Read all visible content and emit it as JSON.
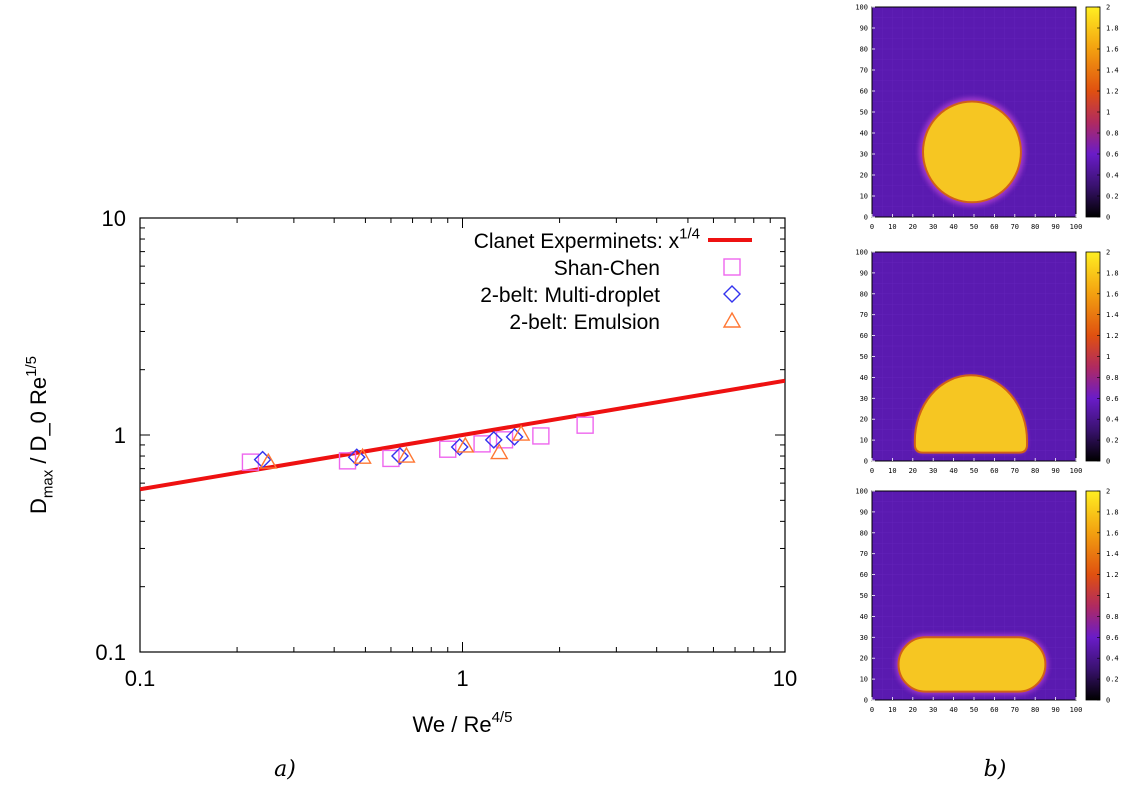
{
  "panel_labels": {
    "a": "a",
    "b": "b"
  },
  "chart_data": [
    {
      "type": "scatter",
      "panel": "a",
      "xlabel": "We / Re^{4/5}",
      "ylabel": "D_{max} / D_0 Re^{1/5}",
      "xscale": "log",
      "yscale": "log",
      "xlim": [
        0.1,
        10
      ],
      "ylim": [
        0.1,
        10
      ],
      "xticks": [
        {
          "value": 0.1,
          "label": "0.1"
        },
        {
          "value": 1,
          "label": "1"
        },
        {
          "value": 10,
          "label": "10"
        }
      ],
      "yticks": [
        {
          "value": 0.1,
          "label": "0.1"
        },
        {
          "value": 1,
          "label": "1"
        },
        {
          "value": 10,
          "label": "10"
        }
      ],
      "grid": false,
      "legend_position": "top-right",
      "line": {
        "name": "Clanet Experminets: x^{1/4}",
        "coef": 1.0,
        "exponent": 0.25,
        "color": "#ee1111"
      },
      "series": [
        {
          "name": "Shan-Chen",
          "marker": "square",
          "color": "#ee66ee",
          "x": [
            0.22,
            0.44,
            0.6,
            0.9,
            1.15,
            1.35,
            1.75,
            2.4
          ],
          "y": [
            0.75,
            0.76,
            0.78,
            0.86,
            0.91,
            0.95,
            0.99,
            1.11
          ]
        },
        {
          "name": "2-belt: Multi-droplet",
          "marker": "diamond",
          "color": "#3333ee",
          "x": [
            0.24,
            0.47,
            0.64,
            0.98,
            1.25,
            1.45
          ],
          "y": [
            0.77,
            0.79,
            0.8,
            0.88,
            0.95,
            0.98
          ]
        },
        {
          "name": "2-belt: Emulsion",
          "marker": "triangle",
          "color": "#ff7733",
          "x": [
            0.25,
            0.49,
            0.67,
            1.02,
            1.3,
            1.52
          ],
          "y": [
            0.75,
            0.79,
            0.8,
            0.89,
            0.83,
            1.01
          ]
        }
      ]
    },
    {
      "type": "heatmap",
      "panel": "b",
      "shape": "circle",
      "xlim": [
        0,
        100
      ],
      "ylim": [
        0,
        100
      ],
      "xticks": [
        0,
        10,
        20,
        30,
        40,
        50,
        60,
        70,
        80,
        90,
        100
      ],
      "yticks": [
        0,
        10,
        20,
        30,
        40,
        50,
        60,
        70,
        80,
        90,
        100
      ],
      "colorbar_range": [
        0,
        2
      ],
      "colorbar_ticks": [
        0,
        0.2,
        0.4,
        0.6,
        0.8,
        1,
        1.2,
        1.4,
        1.6,
        1.8,
        2
      ],
      "background_value": 0.3,
      "droplet_value": 1.9,
      "droplet": {
        "cx": 49,
        "cy": 31,
        "rx": 24,
        "ry": 24
      }
    },
    {
      "type": "heatmap",
      "panel": "b",
      "shape": "dome",
      "xlim": [
        0,
        100
      ],
      "ylim": [
        0,
        100
      ],
      "xticks": [
        0,
        10,
        20,
        30,
        40,
        50,
        60,
        70,
        80,
        90,
        100
      ],
      "yticks": [
        0,
        10,
        20,
        30,
        40,
        50,
        60,
        70,
        80,
        90,
        100
      ],
      "colorbar_range": [
        0,
        2
      ],
      "colorbar_ticks": [
        0,
        0.2,
        0.4,
        0.6,
        0.8,
        1,
        1.2,
        1.4,
        1.6,
        1.8,
        2
      ],
      "background_value": 0.3,
      "droplet_value": 1.9,
      "droplet": {
        "x0": 21,
        "x1": 76,
        "y0": 4,
        "y1": 41
      }
    },
    {
      "type": "heatmap",
      "panel": "b",
      "shape": "pill",
      "xlim": [
        0,
        100
      ],
      "ylim": [
        0,
        100
      ],
      "xticks": [
        0,
        10,
        20,
        30,
        40,
        50,
        60,
        70,
        80,
        90,
        100
      ],
      "yticks": [
        0,
        10,
        20,
        30,
        40,
        50,
        60,
        70,
        80,
        90,
        100
      ],
      "colorbar_range": [
        0,
        2
      ],
      "colorbar_ticks": [
        0,
        0.2,
        0.4,
        0.6,
        0.8,
        1,
        1.2,
        1.4,
        1.6,
        1.8,
        2
      ],
      "background_value": 0.3,
      "droplet_value": 1.9,
      "droplet": {
        "x0": 13,
        "x1": 85,
        "y0": 4,
        "y1": 30
      }
    }
  ]
}
